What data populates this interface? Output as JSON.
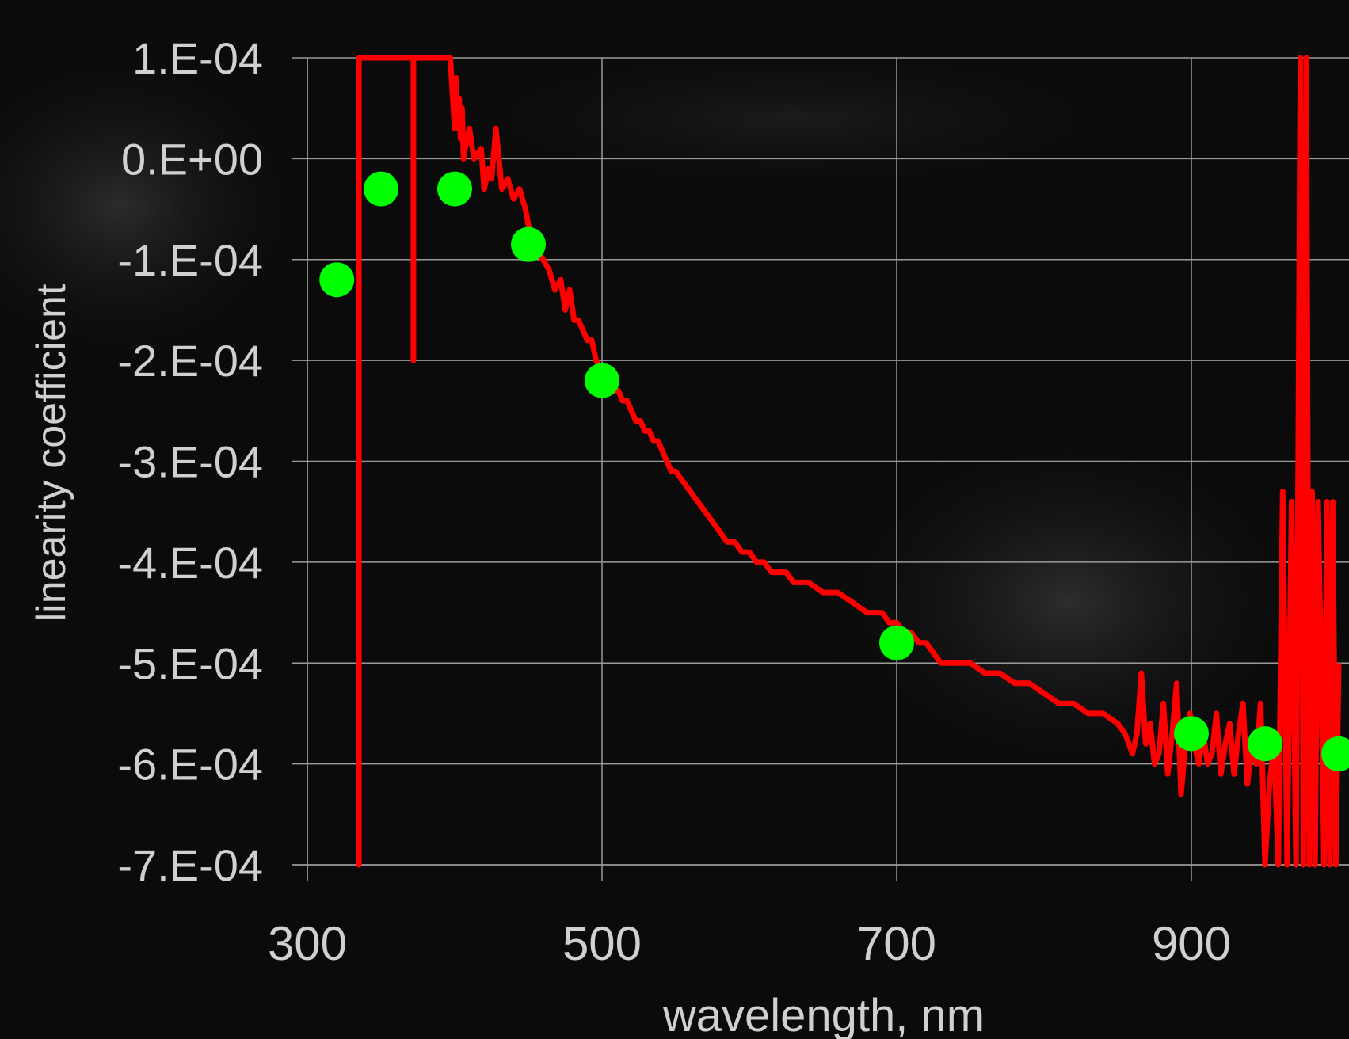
{
  "chart_data": {
    "type": "line",
    "title": "",
    "xlabel": "wavelength, nm",
    "ylabel": "linearity coefficient",
    "xlim": [
      300,
      1000
    ],
    "ylim": [
      -0.0007,
      0.0001
    ],
    "x_ticks": [
      300,
      500,
      700,
      900
    ],
    "x_tick_labels": [
      "300",
      "500",
      "700",
      "900"
    ],
    "y_ticks": [
      0.0001,
      0.0,
      -0.0001,
      -0.0002,
      -0.0003,
      -0.0004,
      -0.0005,
      -0.0006,
      -0.0007
    ],
    "y_tick_labels": [
      "1.E-04",
      "0.E+00",
      "-1.E-04",
      "-2.E-04",
      "-3.E-04",
      "-4.E-04",
      "-5.E-04",
      "-6.E-04",
      "-7.E-04"
    ],
    "grid": true,
    "background": "#0b0b0b",
    "series": [
      {
        "color": "#ff0000",
        "kind": "line",
        "x": [
          335,
          335,
          335,
          372,
          372,
          372,
          372,
          372,
          397,
          400,
          401,
          402,
          403,
          404,
          405,
          406,
          407,
          410,
          413,
          418,
          420,
          423,
          425,
          428,
          432,
          436,
          440,
          444,
          448,
          452,
          456,
          460,
          464,
          468,
          472,
          475,
          478,
          481,
          484,
          487,
          490,
          493,
          496,
          499,
          502,
          505,
          508,
          511,
          514,
          517,
          520,
          523,
          526,
          529,
          532,
          535,
          538,
          541,
          544,
          547,
          550,
          555,
          560,
          565,
          570,
          575,
          580,
          585,
          590,
          595,
          600,
          605,
          610,
          615,
          620,
          625,
          630,
          640,
          650,
          660,
          670,
          680,
          690,
          695,
          700,
          705,
          710,
          715,
          720,
          725,
          730,
          740,
          750,
          760,
          770,
          780,
          790,
          800,
          810,
          820,
          830,
          840,
          850,
          855,
          860,
          863,
          866,
          869,
          872,
          875,
          878,
          881,
          884,
          887,
          890,
          893,
          896,
          899,
          902,
          905,
          908,
          911,
          914,
          917,
          920,
          923,
          926,
          929,
          932,
          935,
          938,
          941,
          944,
          947,
          950,
          953,
          956,
          959,
          962,
          965,
          968,
          971,
          974,
          976,
          978,
          980,
          982,
          984,
          986,
          988,
          990,
          992,
          994,
          996,
          998,
          1000
        ],
        "y": [
          0.0001,
          -0.0007,
          0.0001,
          0.0001,
          -0.0001,
          -0.0002,
          -0.0001,
          0.0001,
          0.0001,
          3e-05,
          8e-05,
          3e-05,
          6e-05,
          2e-05,
          5e-05,
          0.0,
          1e-05,
          3e-05,
          0.0,
          1e-05,
          -3e-05,
          -1e-05,
          -2e-05,
          3e-05,
          -3e-05,
          -2e-05,
          -4e-05,
          -3e-05,
          -5e-05,
          -8e-05,
          -9e-05,
          -0.0001,
          -0.00011,
          -0.00013,
          -0.00012,
          -0.00015,
          -0.00013,
          -0.00016,
          -0.00016,
          -0.00017,
          -0.00018,
          -0.00018,
          -0.0002,
          -0.00021,
          -0.00021,
          -0.00022,
          -0.00023,
          -0.00023,
          -0.00024,
          -0.00024,
          -0.00025,
          -0.00026,
          -0.00026,
          -0.00027,
          -0.00027,
          -0.00028,
          -0.00028,
          -0.00029,
          -0.0003,
          -0.00031,
          -0.00031,
          -0.00032,
          -0.00033,
          -0.00034,
          -0.00035,
          -0.00036,
          -0.00037,
          -0.00038,
          -0.00038,
          -0.00039,
          -0.00039,
          -0.0004,
          -0.0004,
          -0.00041,
          -0.00041,
          -0.00041,
          -0.00042,
          -0.00042,
          -0.00043,
          -0.00043,
          -0.00044,
          -0.00045,
          -0.00045,
          -0.00046,
          -0.00046,
          -0.00047,
          -0.00047,
          -0.00048,
          -0.00048,
          -0.00049,
          -0.0005,
          -0.0005,
          -0.0005,
          -0.00051,
          -0.00051,
          -0.00052,
          -0.00052,
          -0.00053,
          -0.00054,
          -0.00054,
          -0.00055,
          -0.00055,
          -0.00056,
          -0.00057,
          -0.00059,
          -0.00057,
          -0.00051,
          -0.00058,
          -0.00056,
          -0.0006,
          -0.00059,
          -0.00054,
          -0.00061,
          -0.00057,
          -0.00052,
          -0.00063,
          -0.00058,
          -0.00055,
          -0.00058,
          -0.0006,
          -0.00057,
          -0.0006,
          -0.00059,
          -0.00055,
          -0.00061,
          -0.00058,
          -0.00056,
          -0.00061,
          -0.00057,
          -0.00054,
          -0.00062,
          -0.00058,
          -0.0006,
          -0.00054,
          -0.0007,
          -0.00062,
          -0.00058,
          -0.0007,
          -0.00033,
          -0.0007,
          -0.00034,
          -0.0007,
          0.0001,
          -0.0007,
          0.0001,
          -0.0007,
          -0.00033,
          -0.0007,
          -0.00034,
          -0.0005,
          -0.0007,
          -0.00034,
          -0.0007,
          -0.00034,
          -0.0007,
          -0.0005
        ]
      },
      {
        "color": "#00ff00",
        "kind": "points",
        "x": [
          320,
          350,
          400,
          450,
          500,
          700,
          900,
          950,
          1000
        ],
        "y": [
          -0.00012,
          -3e-05,
          -3e-05,
          -8.5e-05,
          -0.00022,
          -0.00048,
          -0.00057,
          -0.00058,
          -0.00059
        ]
      }
    ]
  }
}
